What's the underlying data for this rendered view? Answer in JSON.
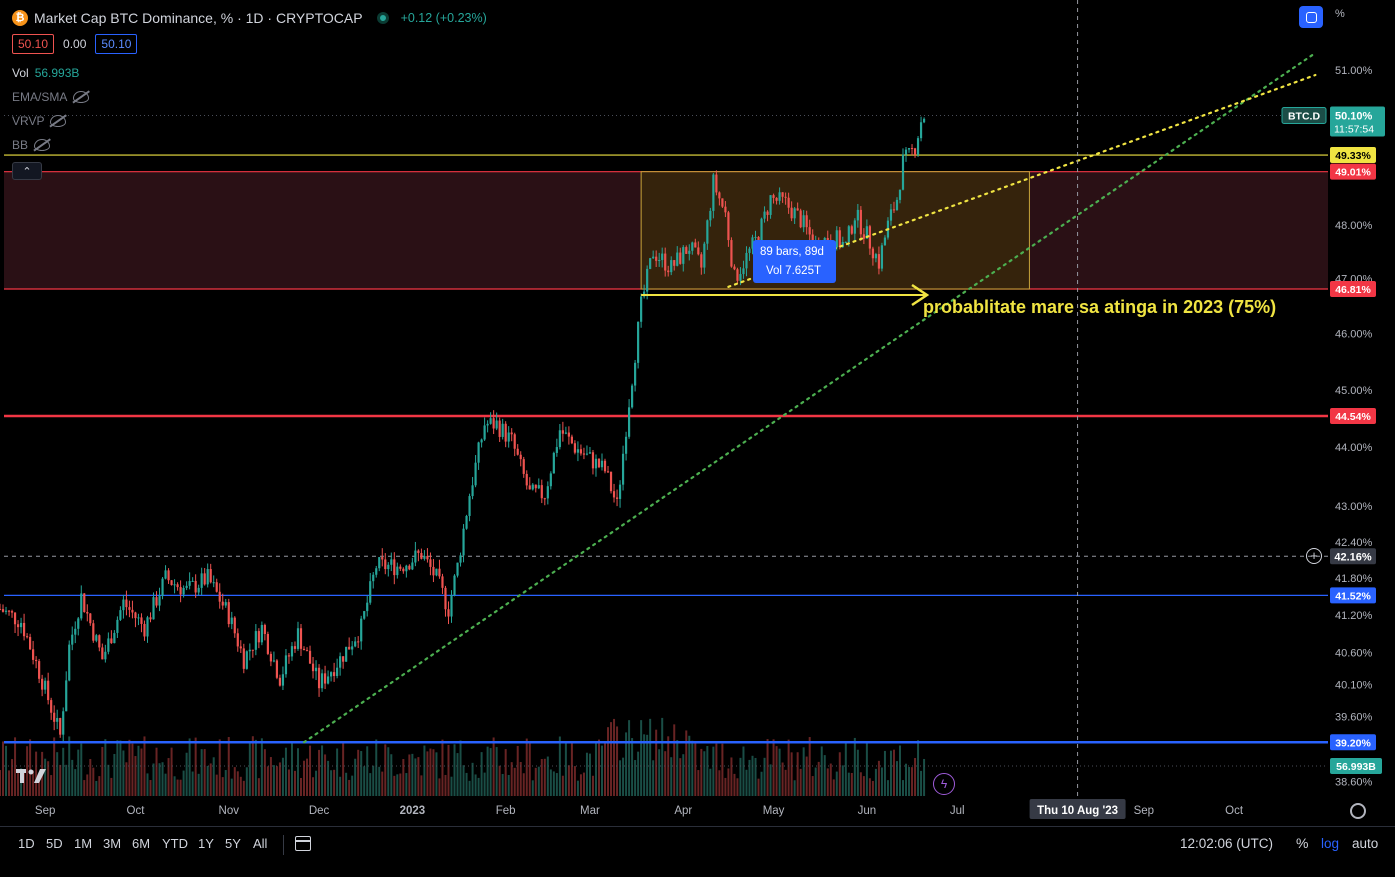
{
  "header": {
    "title": "Market Cap BTC Dominance, % · 1D · CRYPTOCAP",
    "change": "+0.12 (+0.23%)",
    "sell_price": "50.10",
    "spread": "0.00",
    "buy_price": "50.10",
    "logo_letter": "₿"
  },
  "indicators": [
    {
      "name": "Vol",
      "value": "56.993B",
      "hidden": false
    },
    {
      "name": "EMA/SMA",
      "value": "",
      "hidden": true
    },
    {
      "name": "VRVP",
      "value": "",
      "hidden": true
    },
    {
      "name": "BB",
      "value": "",
      "hidden": true
    }
  ],
  "collapse_symbol": "⌃",
  "price_axis": {
    "unit_label": "%",
    "ticks": [
      "51.00%",
      "48.00%",
      "47.00%",
      "46.00%",
      "45.00%",
      "44.00%",
      "43.00%",
      "42.40%",
      "41.80%",
      "41.20%",
      "40.60%",
      "40.10%",
      "39.60%",
      "38.60%"
    ]
  },
  "price_labels": {
    "symbol": "BTC.D",
    "current": "50.10%",
    "countdown": "11:57:54",
    "crosshair": "42.16%",
    "volume": "56.993B"
  },
  "hlines": [
    {
      "label": "49.33%",
      "value": 49.33,
      "color": "#f0e442",
      "text_color": "#000000"
    },
    {
      "label": "49.01%",
      "value": 49.01,
      "color": "#f23645",
      "text_color": "#ffffff"
    },
    {
      "label": "46.81%",
      "value": 46.81,
      "color": "#f23645",
      "text_color": "#ffffff"
    },
    {
      "label": "44.54%",
      "value": 44.54,
      "color": "#f23645",
      "text_color": "#ffffff"
    },
    {
      "label": "41.52%",
      "value": 41.52,
      "color": "#2962ff",
      "text_color": "#ffffff"
    },
    {
      "label": "39.20%",
      "value": 39.2,
      "color": "#2962ff",
      "text_color": "#ffffff"
    }
  ],
  "time_axis": {
    "labels": [
      "Sep",
      "Oct",
      "Nov",
      "Dec",
      "2023",
      "Feb",
      "Mar",
      "Apr",
      "May",
      "Jun",
      "Jul",
      "Aug",
      "Sep",
      "Oct"
    ],
    "crosshair_date": "Thu 10 Aug '23"
  },
  "range_tooltip": {
    "line1": "89 bars, 89d",
    "line2": "Vol 7.625T"
  },
  "annotation": "probablitate mare sa atinga in 2023 (75%)",
  "toolbar": {
    "timeframes": [
      "1D",
      "5D",
      "1M",
      "3M",
      "6M",
      "YTD",
      "1Y",
      "5Y",
      "All"
    ],
    "clock": "12:02:06 (UTC)",
    "percent": "%",
    "log": "log",
    "auto": "auto"
  },
  "colors": {
    "background": "#000000",
    "up": "#26a69a",
    "down": "#ef5350",
    "zone_fill": "#2a1015",
    "range_box_fill": "#3a2a0a",
    "range_box_border": "#c8a53a",
    "accent": "#2962ff",
    "annotation": "#f0e442",
    "trend_green": "#4caf50",
    "trend_yellow": "#f0e442"
  },
  "chart_data": {
    "type": "candlestick",
    "title": "Market Cap BTC Dominance, % · 1D · CRYPTOCAP",
    "ylabel": "%",
    "ylim": [
      38.6,
      51.5
    ],
    "x_range": [
      "2022-08-17",
      "2023-11-01"
    ],
    "grid": false,
    "close_anchors": [
      {
        "date": "2022-08-17",
        "close": 41.3
      },
      {
        "date": "2022-08-24",
        "close": 41.1
      },
      {
        "date": "2022-08-30",
        "close": 40.3
      },
      {
        "date": "2022-09-06",
        "close": 39.3
      },
      {
        "date": "2022-09-09",
        "close": 40.7
      },
      {
        "date": "2022-09-13",
        "close": 41.5
      },
      {
        "date": "2022-09-20",
        "close": 40.5
      },
      {
        "date": "2022-09-27",
        "close": 41.4
      },
      {
        "date": "2022-10-04",
        "close": 41.0
      },
      {
        "date": "2022-10-11",
        "close": 41.8
      },
      {
        "date": "2022-10-18",
        "close": 41.6
      },
      {
        "date": "2022-10-25",
        "close": 41.8
      },
      {
        "date": "2022-11-01",
        "close": 41.2
      },
      {
        "date": "2022-11-06",
        "close": 40.5
      },
      {
        "date": "2022-11-12",
        "close": 41.0
      },
      {
        "date": "2022-11-18",
        "close": 40.2
      },
      {
        "date": "2022-11-24",
        "close": 40.9
      },
      {
        "date": "2022-12-01",
        "close": 40.1
      },
      {
        "date": "2022-12-08",
        "close": 40.5
      },
      {
        "date": "2022-12-15",
        "close": 41.0
      },
      {
        "date": "2022-12-20",
        "close": 42.0
      },
      {
        "date": "2022-12-28",
        "close": 42.0
      },
      {
        "date": "2023-01-04",
        "close": 42.2
      },
      {
        "date": "2023-01-09",
        "close": 41.8
      },
      {
        "date": "2023-01-13",
        "close": 41.3
      },
      {
        "date": "2023-01-16",
        "close": 42.0
      },
      {
        "date": "2023-01-20",
        "close": 43.2
      },
      {
        "date": "2023-01-25",
        "close": 44.4
      },
      {
        "date": "2023-01-29",
        "close": 44.4
      },
      {
        "date": "2023-02-03",
        "close": 44.1
      },
      {
        "date": "2023-02-09",
        "close": 43.2
      },
      {
        "date": "2023-02-14",
        "close": 43.2
      },
      {
        "date": "2023-02-19",
        "close": 44.3
      },
      {
        "date": "2023-02-24",
        "close": 44.0
      },
      {
        "date": "2023-03-01",
        "close": 43.8
      },
      {
        "date": "2023-03-06",
        "close": 43.6
      },
      {
        "date": "2023-03-10",
        "close": 43.0
      },
      {
        "date": "2023-03-14",
        "close": 44.8
      },
      {
        "date": "2023-03-18",
        "close": 46.5
      },
      {
        "date": "2023-03-22",
        "close": 47.5
      },
      {
        "date": "2023-03-28",
        "close": 47.2
      },
      {
        "date": "2023-04-03",
        "close": 47.6
      },
      {
        "date": "2023-04-07",
        "close": 47.2
      },
      {
        "date": "2023-04-11",
        "close": 48.8
      },
      {
        "date": "2023-04-15",
        "close": 48.2
      },
      {
        "date": "2023-04-18",
        "close": 47.0
      },
      {
        "date": "2023-04-22",
        "close": 47.4
      },
      {
        "date": "2023-04-26",
        "close": 47.8
      },
      {
        "date": "2023-04-30",
        "close": 48.5
      },
      {
        "date": "2023-05-05",
        "close": 48.4
      },
      {
        "date": "2023-05-10",
        "close": 48.1
      },
      {
        "date": "2023-05-15",
        "close": 47.6
      },
      {
        "date": "2023-05-20",
        "close": 47.8
      },
      {
        "date": "2023-05-25",
        "close": 47.6
      },
      {
        "date": "2023-05-28",
        "close": 48.2
      },
      {
        "date": "2023-06-01",
        "close": 47.8
      },
      {
        "date": "2023-06-05",
        "close": 47.3
      },
      {
        "date": "2023-06-08",
        "close": 48.0
      },
      {
        "date": "2023-06-11",
        "close": 48.5
      },
      {
        "date": "2023-06-13",
        "close": 49.2
      },
      {
        "date": "2023-06-15",
        "close": 49.3
      },
      {
        "date": "2023-06-17",
        "close": 49.5
      },
      {
        "date": "2023-06-19",
        "close": 50.0
      },
      {
        "date": "2023-06-20",
        "close": 50.1
      }
    ],
    "volume_label": "Vol 56.993B",
    "drawings": {
      "range_box": {
        "from": "2023-03-18",
        "to": "2023-07-25",
        "low": 46.81,
        "high": 49.01
      },
      "green_trendline": [
        {
          "date": "2022-11-26",
          "value": 39.2
        },
        {
          "date": "2023-10-27",
          "value": 51.3
        }
      ],
      "yellow_trendline": [
        {
          "date": "2023-04-16",
          "value": 46.85
        },
        {
          "date": "2023-10-28",
          "value": 50.9
        }
      ],
      "dark_red_zone": {
        "low": 46.81,
        "high": 49.01
      },
      "vertical_marker_date": "2023-08-10"
    }
  }
}
